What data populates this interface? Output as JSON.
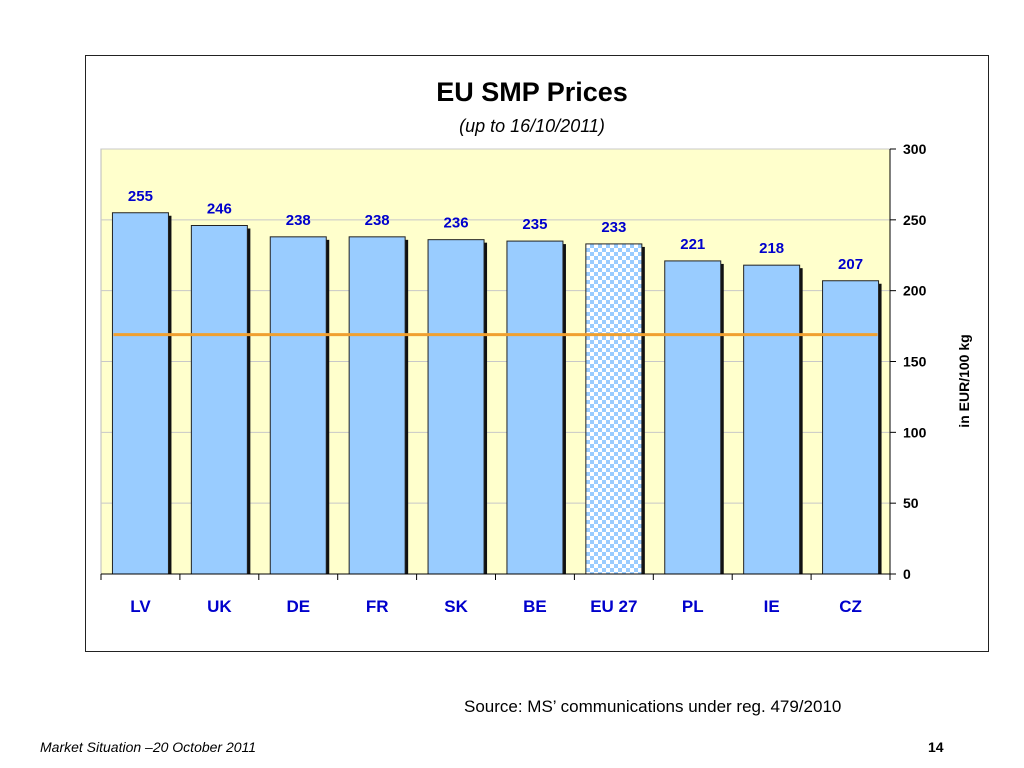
{
  "chart_data": {
    "type": "bar",
    "title": "EU SMP Prices",
    "subtitle": "(up to 16/10/2011)",
    "categories": [
      "LV",
      "UK",
      "DE",
      "FR",
      "SK",
      "BE",
      "EU 27",
      "PL",
      "IE",
      "CZ"
    ],
    "values": [
      255,
      246,
      238,
      238,
      236,
      235,
      233,
      221,
      218,
      207
    ],
    "highlight_category": "EU 27",
    "ylabel": "in EUR/100 kg",
    "xlabel": "",
    "ylim": [
      0,
      300
    ],
    "yticks": [
      0,
      50,
      100,
      150,
      200,
      250,
      300
    ],
    "y_axis_side": "right",
    "reference_line": {
      "value": 169
    },
    "colors": {
      "bar": "#99ccff",
      "highlight": "#99ccff",
      "plot_background": "#ffffcc",
      "reference_line": "#f0a030",
      "value_labels": "#0000cc",
      "category_labels": "#0000cc"
    },
    "grid": true
  },
  "source_note": "Source: MS’ communications under reg. 479/2010",
  "footer": {
    "left_text": "Market Situation –20 October 2011",
    "page_number": "14"
  }
}
